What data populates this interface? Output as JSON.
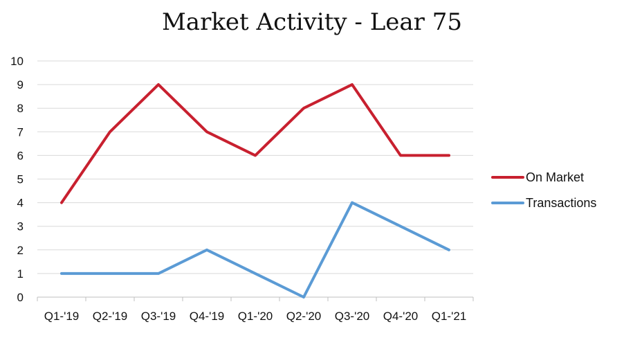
{
  "chart_data": {
    "type": "line",
    "title": "Market Activity - Lear 75",
    "categories": [
      "Q1-'19",
      "Q2-'19",
      "Q3-'19",
      "Q4-'19",
      "Q1-'20",
      "Q2-'20",
      "Q3-'20",
      "Q4-'20",
      "Q1-'21"
    ],
    "series": [
      {
        "name": "On Market",
        "values": [
          4,
          7,
          9,
          7,
          6,
          8,
          9,
          6,
          6
        ],
        "color": "#c8202f"
      },
      {
        "name": "Transactions",
        "values": [
          1,
          1,
          1,
          2,
          1,
          0,
          4,
          3,
          2
        ],
        "color": "#5b9bd5"
      }
    ],
    "ylim": [
      0,
      10
    ],
    "yticks": [
      0,
      1,
      2,
      3,
      4,
      5,
      6,
      7,
      8,
      9,
      10
    ],
    "grid": true,
    "legend": "right",
    "xlabel": "",
    "ylabel": ""
  }
}
